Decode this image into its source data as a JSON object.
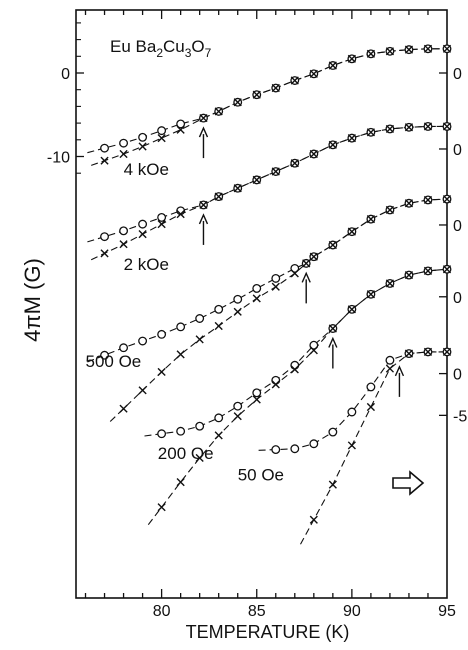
{
  "chart_data": {
    "type": "scatter",
    "title": "Eu Ba2Cu3O7",
    "title_parts": {
      "a": "Eu Ba",
      "s1": "2",
      "b": "Cu",
      "s2": "3",
      "c": "O",
      "s3": "7"
    },
    "xlabel": "TEMPERATURE (K)",
    "ylabel": "4πM (G)",
    "xlim": [
      75.5,
      95
    ],
    "x_ticks": [
      80,
      85,
      90,
      95
    ],
    "x_tick_labels": [
      "80",
      "85",
      "90",
      "95"
    ],
    "left_axis": {
      "tick_labels": [
        "0",
        "-10"
      ],
      "tick_values": [
        0,
        -10
      ]
    },
    "right_axis_tick_labels": [
      "0",
      "0",
      "0",
      "0",
      "0",
      "-5"
    ],
    "markers": {
      "fc": "open-circle",
      "zfc": "cross",
      "both": "circled-cross"
    },
    "series": [
      {
        "name": "4 kOe",
        "shared_x": [
          82.2,
          83,
          84,
          85,
          86,
          87,
          88,
          89,
          90,
          91,
          92,
          93,
          94,
          95
        ],
        "shared_y": [
          -5.4,
          -4.6,
          -3.5,
          -2.6,
          -1.8,
          -0.9,
          -0.1,
          0.9,
          1.7,
          2.3,
          2.6,
          2.8,
          2.9,
          2.9
        ],
        "fc_x": [
          77,
          78,
          79,
          80,
          81
        ],
        "fc_y": [
          -9.0,
          -8.4,
          -7.7,
          -6.9,
          -6.1
        ],
        "zfc_x": [
          77,
          78,
          79,
          80,
          81
        ],
        "zfc_y": [
          -10.5,
          -9.7,
          -8.8,
          -7.8,
          -6.8
        ],
        "arrow_x": 82.2
      },
      {
        "name": "2 kOe",
        "shared_x": [
          82.2,
          83,
          84,
          85,
          86,
          87,
          88,
          89,
          90,
          91,
          92,
          93,
          94,
          95
        ],
        "shared_y": [
          -15.8,
          -14.8,
          -13.8,
          -12.8,
          -11.8,
          -10.8,
          -9.7,
          -8.6,
          -7.8,
          -7.1,
          -6.7,
          -6.5,
          -6.4,
          -6.4
        ],
        "fc_x": [
          77,
          78,
          79,
          80,
          81
        ],
        "fc_y": [
          -19.6,
          -18.9,
          -18.1,
          -17.3,
          -16.5
        ],
        "zfc_x": [
          77,
          78,
          79,
          80,
          81
        ],
        "zfc_y": [
          -21.6,
          -20.5,
          -19.3,
          -18.1,
          -16.9
        ],
        "arrow_x": 82.2
      },
      {
        "name": "500 Oe",
        "shared_x": [
          87.6,
          88,
          89,
          90,
          91,
          92,
          93,
          94,
          95
        ],
        "shared_y": [
          -22.8,
          -22.0,
          -20.6,
          -19.0,
          -17.5,
          -16.4,
          -15.6,
          -15.2,
          -15.1
        ],
        "fc_x": [
          77,
          78,
          79,
          80,
          81,
          82,
          83,
          84,
          85,
          86,
          87
        ],
        "fc_y": [
          -33.8,
          -32.9,
          -32.1,
          -31.3,
          -30.4,
          -29.4,
          -28.3,
          -27.1,
          -25.8,
          -24.6,
          -23.4
        ],
        "zfc_x": [
          78,
          79,
          80,
          81,
          82,
          83,
          84,
          85,
          86,
          87
        ],
        "zfc_y": [
          -40.2,
          -38.0,
          -35.8,
          -33.7,
          -31.9,
          -30.3,
          -28.6,
          -27.0,
          -25.6,
          -24.0
        ],
        "arrow_x": 87.6
      },
      {
        "name": "200 Oe",
        "shared_x": [
          89.0,
          90,
          91,
          92,
          93,
          94,
          95
        ],
        "shared_y": [
          -30.6,
          -28.3,
          -26.5,
          -25.2,
          -24.2,
          -23.7,
          -23.5
        ],
        "fc_x": [
          80,
          81,
          82,
          83,
          84,
          85,
          86,
          87,
          88
        ],
        "fc_y": [
          -43.2,
          -42.9,
          -42.3,
          -41.3,
          -39.9,
          -38.3,
          -36.8,
          -35.0,
          -32.6
        ],
        "zfc_x": [
          80,
          81,
          82,
          83,
          84,
          85,
          86,
          87,
          88
        ],
        "zfc_y": [
          -52.0,
          -49.0,
          -46.1,
          -43.4,
          -41.1,
          -39.1,
          -37.3,
          -35.5,
          -33.2
        ],
        "arrow_x": 89.0
      },
      {
        "name": "50 Oe",
        "shared_x": [
          93,
          94,
          95
        ],
        "shared_y": [
          -33.6,
          -33.4,
          -33.4
        ],
        "fc_x": [
          86,
          87,
          88,
          89,
          90,
          91,
          92
        ],
        "fc_y": [
          -45.1,
          -45.0,
          -44.4,
          -43.0,
          -40.6,
          -37.6,
          -34.4
        ],
        "zfc_x": [
          88,
          89,
          90,
          91,
          92
        ],
        "zfc_y": [
          -53.5,
          -49.3,
          -44.6,
          -40.0,
          -35.4
        ],
        "arrow_x": 92.5
      }
    ],
    "annotations": [
      {
        "text": "4 kOe",
        "x": 78.0,
        "y": -12.2
      },
      {
        "text": "2 kOe",
        "x": 78.0,
        "y": -23.6
      },
      {
        "text": "500 Oe",
        "x": 76.0,
        "y": -35.2
      },
      {
        "text": "200 Oe",
        "x": 79.8,
        "y": -46.2
      },
      {
        "text": "50 Oe",
        "x": 84.0,
        "y": -48.8
      }
    ],
    "grid": false,
    "legend": "none"
  }
}
